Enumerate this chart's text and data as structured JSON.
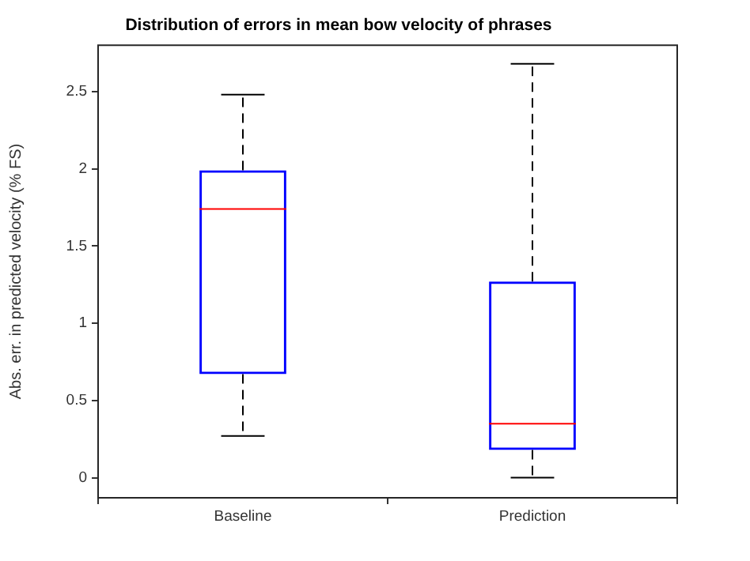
{
  "chart_data": {
    "type": "box",
    "title": "Distribution of errors in mean bow velocity of phrases",
    "ylabel": "Abs. err. in predicted velocity (% FS)",
    "categories": [
      "Baseline",
      "Prediction"
    ],
    "color": "#0000ff",
    "boxes": [
      {
        "low": 0.27,
        "q1": 0.67,
        "median": 1.74,
        "q3": 1.99,
        "high": 2.48
      },
      {
        "low": 0,
        "q1": 0.18,
        "median": 0.35,
        "q3": 1.27,
        "high": 2.68
      }
    ],
    "ylim": [
      -0.13,
      2.8
    ],
    "yticks": [
      0,
      0.5,
      1,
      1.5,
      2,
      2.5
    ],
    "grid": false,
    "legend": false
  }
}
